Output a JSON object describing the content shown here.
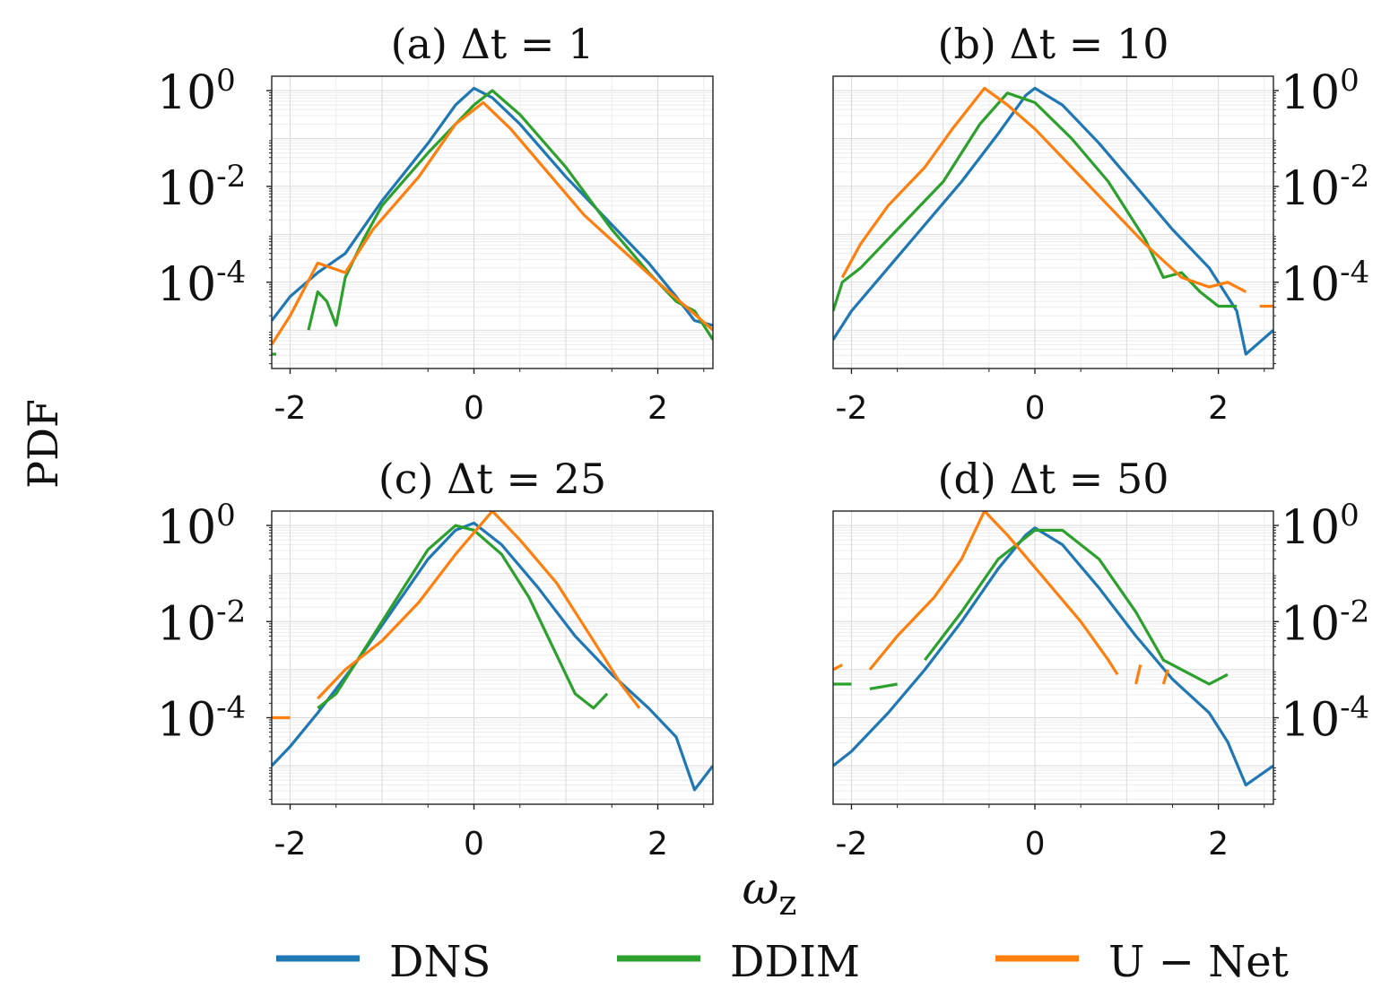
{
  "figure": {
    "ylabel": "PDF",
    "xlabel": "ω",
    "xlabel_sub": "z"
  },
  "legend": [
    {
      "label": "DNS",
      "color": "#1f77b4"
    },
    {
      "label": "DDIM",
      "color": "#2ca02c"
    },
    {
      "label": "U − Net",
      "color": "#ff7f0e"
    }
  ],
  "chart_data": [
    {
      "type": "line",
      "title": "(a) Δt  =  1",
      "xlim": [
        -2.2,
        2.6
      ],
      "ylim_log10": [
        -5.8,
        0.3
      ],
      "yscale": "log",
      "yaxis_side": "left",
      "xticks": [
        -2,
        0,
        2
      ],
      "xtick_labels": [
        "-2",
        "0",
        "2"
      ],
      "yticks": [
        {
          "base": "10",
          "exp": "0",
          "log": 0
        },
        {
          "base": "10",
          "exp": "-2",
          "log": -2
        },
        {
          "base": "10",
          "exp": "-4",
          "log": -4
        }
      ],
      "grid": true,
      "series": [
        {
          "name": "DNS",
          "color": "#1f77b4",
          "segments": [
            [
              [
                -2.2,
                -4.8
              ],
              [
                -2.0,
                -4.3
              ],
              [
                -1.7,
                -3.8
              ],
              [
                -1.4,
                -3.4
              ],
              [
                -1.0,
                -2.3
              ],
              [
                -0.5,
                -1.1
              ],
              [
                -0.2,
                -0.3
              ],
              [
                0.0,
                0.05
              ],
              [
                0.2,
                -0.15
              ],
              [
                0.5,
                -0.7
              ],
              [
                1.0,
                -1.8
              ],
              [
                1.5,
                -2.8
              ],
              [
                1.9,
                -3.6
              ],
              [
                2.2,
                -4.3
              ],
              [
                2.4,
                -4.8
              ],
              [
                2.6,
                -4.9
              ]
            ]
          ]
        },
        {
          "name": "DDIM",
          "color": "#2ca02c",
          "segments": [
            [
              [
                -2.2,
                -5.5
              ],
              [
                -2.15,
                -5.5
              ]
            ],
            [
              [
                -1.8,
                -5.0
              ],
              [
                -1.7,
                -4.2
              ],
              [
                -1.6,
                -4.4
              ],
              [
                -1.5,
                -4.9
              ],
              [
                -1.4,
                -3.9
              ],
              [
                -1.2,
                -3.1
              ],
              [
                -1.0,
                -2.4
              ],
              [
                -0.5,
                -1.3
              ],
              [
                0.0,
                -0.3
              ],
              [
                0.2,
                0.0
              ],
              [
                0.5,
                -0.5
              ],
              [
                1.0,
                -1.6
              ],
              [
                1.5,
                -2.9
              ],
              [
                1.9,
                -3.8
              ],
              [
                2.2,
                -4.4
              ],
              [
                2.4,
                -4.6
              ],
              [
                2.6,
                -5.2
              ]
            ]
          ]
        },
        {
          "name": "U − Net",
          "color": "#ff7f0e",
          "segments": [
            [
              [
                -2.2,
                -5.3
              ],
              [
                -2.0,
                -4.7
              ],
              [
                -1.7,
                -3.6
              ],
              [
                -1.4,
                -3.8
              ],
              [
                -1.1,
                -2.9
              ],
              [
                -0.6,
                -1.8
              ],
              [
                -0.2,
                -0.7
              ],
              [
                0.1,
                -0.25
              ],
              [
                0.4,
                -0.8
              ],
              [
                0.8,
                -1.7
              ],
              [
                1.2,
                -2.6
              ],
              [
                1.6,
                -3.3
              ],
              [
                2.0,
                -4.0
              ],
              [
                2.3,
                -4.5
              ],
              [
                2.6,
                -5.0
              ]
            ]
          ]
        }
      ]
    },
    {
      "type": "line",
      "title": "(b) Δt  =  10",
      "xlim": [
        -2.2,
        2.6
      ],
      "ylim_log10": [
        -5.8,
        0.3
      ],
      "yscale": "log",
      "yaxis_side": "right",
      "xticks": [
        -2,
        0,
        2
      ],
      "xtick_labels": [
        "-2",
        "0",
        "2"
      ],
      "yticks": [
        {
          "base": "10",
          "exp": "0",
          "log": 0
        },
        {
          "base": "10",
          "exp": "-2",
          "log": -2
        },
        {
          "base": "10",
          "exp": "-4",
          "log": -4
        }
      ],
      "grid": true,
      "series": [
        {
          "name": "DNS",
          "color": "#1f77b4",
          "segments": [
            [
              [
                -2.2,
                -5.2
              ],
              [
                -2.0,
                -4.6
              ],
              [
                -1.6,
                -3.7
              ],
              [
                -1.2,
                -2.8
              ],
              [
                -0.8,
                -1.9
              ],
              [
                -0.4,
                -0.9
              ],
              [
                -0.1,
                -0.1
              ],
              [
                0.0,
                0.05
              ],
              [
                0.3,
                -0.3
              ],
              [
                0.7,
                -1.1
              ],
              [
                1.1,
                -2.0
              ],
              [
                1.5,
                -2.9
              ],
              [
                1.9,
                -3.7
              ],
              [
                2.2,
                -4.6
              ],
              [
                2.3,
                -5.5
              ],
              [
                2.6,
                -5.0
              ]
            ]
          ]
        },
        {
          "name": "DDIM",
          "color": "#2ca02c",
          "segments": [
            [
              [
                -2.2,
                -4.6
              ],
              [
                -2.1,
                -4.0
              ],
              [
                -1.9,
                -3.7
              ],
              [
                -1.5,
                -2.9
              ],
              [
                -1.0,
                -1.9
              ],
              [
                -0.6,
                -0.7
              ],
              [
                -0.3,
                -0.05
              ],
              [
                0.0,
                -0.25
              ],
              [
                0.4,
                -1.0
              ],
              [
                0.8,
                -1.9
              ],
              [
                1.2,
                -3.1
              ],
              [
                1.4,
                -3.9
              ],
              [
                1.6,
                -3.8
              ],
              [
                1.8,
                -4.2
              ],
              [
                2.0,
                -4.5
              ],
              [
                2.2,
                -4.5
              ]
            ]
          ]
        },
        {
          "name": "U − Net",
          "color": "#ff7f0e",
          "segments": [
            [
              [
                -2.1,
                -3.9
              ],
              [
                -1.9,
                -3.2
              ],
              [
                -1.6,
                -2.4
              ],
              [
                -1.2,
                -1.6
              ],
              [
                -0.9,
                -0.8
              ],
              [
                -0.55,
                0.05
              ],
              [
                -0.3,
                -0.3
              ],
              [
                0.0,
                -0.8
              ],
              [
                0.4,
                -1.6
              ],
              [
                0.8,
                -2.4
              ],
              [
                1.2,
                -3.2
              ],
              [
                1.6,
                -3.9
              ],
              [
                1.9,
                -4.1
              ],
              [
                2.1,
                -4.0
              ],
              [
                2.3,
                -4.2
              ]
            ],
            [
              [
                2.45,
                -4.5
              ],
              [
                2.6,
                -4.5
              ]
            ]
          ]
        }
      ]
    },
    {
      "type": "line",
      "title": "(c) Δt  =  25",
      "xlim": [
        -2.2,
        2.6
      ],
      "ylim_log10": [
        -5.8,
        0.3
      ],
      "yscale": "log",
      "yaxis_side": "left",
      "xticks": [
        -2,
        0,
        2
      ],
      "xtick_labels": [
        "-2",
        "0",
        "2"
      ],
      "yticks": [
        {
          "base": "10",
          "exp": "0",
          "log": 0
        },
        {
          "base": "10",
          "exp": "-2",
          "log": -2
        },
        {
          "base": "10",
          "exp": "-4",
          "log": -4
        }
      ],
      "grid": true,
      "series": [
        {
          "name": "DNS",
          "color": "#1f77b4",
          "segments": [
            [
              [
                -2.2,
                -5.0
              ],
              [
                -2.0,
                -4.6
              ],
              [
                -1.7,
                -3.9
              ],
              [
                -1.3,
                -2.9
              ],
              [
                -0.9,
                -1.8
              ],
              [
                -0.5,
                -0.7
              ],
              [
                -0.2,
                -0.1
              ],
              [
                0.0,
                0.05
              ],
              [
                0.3,
                -0.4
              ],
              [
                0.7,
                -1.3
              ],
              [
                1.1,
                -2.3
              ],
              [
                1.5,
                -3.1
              ],
              [
                1.9,
                -3.8
              ],
              [
                2.2,
                -4.4
              ],
              [
                2.4,
                -5.5
              ],
              [
                2.6,
                -5.0
              ]
            ]
          ]
        },
        {
          "name": "DDIM",
          "color": "#2ca02c",
          "segments": [
            [
              [
                -1.7,
                -3.8
              ],
              [
                -1.5,
                -3.5
              ],
              [
                -1.2,
                -2.6
              ],
              [
                -0.8,
                -1.4
              ],
              [
                -0.5,
                -0.5
              ],
              [
                -0.2,
                0.0
              ],
              [
                0.0,
                -0.1
              ],
              [
                0.3,
                -0.6
              ],
              [
                0.6,
                -1.5
              ],
              [
                0.9,
                -2.7
              ],
              [
                1.1,
                -3.5
              ],
              [
                1.3,
                -3.8
              ],
              [
                1.45,
                -3.5
              ]
            ]
          ]
        },
        {
          "name": "U − Net",
          "color": "#ff7f0e",
          "segments": [
            [
              [
                -2.2,
                -4.0
              ],
              [
                -2.0,
                -4.0
              ]
            ],
            [
              [
                -1.7,
                -3.6
              ],
              [
                -1.4,
                -3.0
              ],
              [
                -1.0,
                -2.4
              ],
              [
                -0.6,
                -1.6
              ],
              [
                -0.2,
                -0.6
              ],
              [
                0.2,
                0.3
              ],
              [
                0.5,
                -0.3
              ],
              [
                0.9,
                -1.2
              ],
              [
                1.3,
                -2.4
              ],
              [
                1.6,
                -3.3
              ],
              [
                1.8,
                -3.8
              ]
            ]
          ]
        }
      ]
    },
    {
      "type": "line",
      "title": "(d) Δt  =  50",
      "xlim": [
        -2.2,
        2.6
      ],
      "ylim_log10": [
        -5.8,
        0.3
      ],
      "yscale": "log",
      "yaxis_side": "right",
      "xticks": [
        -2,
        0,
        2
      ],
      "xtick_labels": [
        "-2",
        "0",
        "2"
      ],
      "yticks": [
        {
          "base": "10",
          "exp": "0",
          "log": 0
        },
        {
          "base": "10",
          "exp": "-2",
          "log": -2
        },
        {
          "base": "10",
          "exp": "-4",
          "log": -4
        }
      ],
      "grid": true,
      "series": [
        {
          "name": "DNS",
          "color": "#1f77b4",
          "segments": [
            [
              [
                -2.2,
                -5.0
              ],
              [
                -2.0,
                -4.7
              ],
              [
                -1.6,
                -3.9
              ],
              [
                -1.2,
                -3.0
              ],
              [
                -0.8,
                -2.0
              ],
              [
                -0.4,
                -0.9
              ],
              [
                -0.1,
                -0.2
              ],
              [
                0.0,
                -0.05
              ],
              [
                0.3,
                -0.4
              ],
              [
                0.7,
                -1.3
              ],
              [
                1.1,
                -2.3
              ],
              [
                1.5,
                -3.2
              ],
              [
                1.9,
                -3.9
              ],
              [
                2.1,
                -4.5
              ],
              [
                2.3,
                -5.4
              ],
              [
                2.6,
                -5.0
              ]
            ]
          ]
        },
        {
          "name": "DDIM",
          "color": "#2ca02c",
          "segments": [
            [
              [
                -2.2,
                -3.3
              ],
              [
                -2.0,
                -3.3
              ]
            ],
            [
              [
                -1.8,
                -3.4
              ],
              [
                -1.5,
                -3.3
              ]
            ],
            [
              [
                -1.2,
                -2.8
              ],
              [
                -0.8,
                -1.8
              ],
              [
                -0.4,
                -0.7
              ],
              [
                0.0,
                -0.1
              ],
              [
                0.3,
                -0.1
              ],
              [
                0.7,
                -0.7
              ],
              [
                1.1,
                -1.8
              ],
              [
                1.4,
                -2.8
              ],
              [
                1.6,
                -3.0
              ],
              [
                1.9,
                -3.3
              ],
              [
                2.1,
                -3.1
              ]
            ]
          ]
        },
        {
          "name": "U − Net",
          "color": "#ff7f0e",
          "segments": [
            [
              [
                -2.2,
                -3.0
              ],
              [
                -2.1,
                -2.9
              ]
            ],
            [
              [
                -1.8,
                -3.0
              ],
              [
                -1.5,
                -2.3
              ],
              [
                -1.1,
                -1.5
              ],
              [
                -0.8,
                -0.7
              ],
              [
                -0.55,
                0.3
              ],
              [
                -0.3,
                -0.2
              ],
              [
                0.1,
                -1.1
              ],
              [
                0.5,
                -2.0
              ],
              [
                0.8,
                -2.8
              ],
              [
                0.9,
                -3.1
              ]
            ],
            [
              [
                1.1,
                -3.3
              ],
              [
                1.15,
                -2.9
              ]
            ],
            [
              [
                1.4,
                -3.3
              ],
              [
                1.45,
                -3.0
              ]
            ]
          ]
        }
      ]
    }
  ]
}
